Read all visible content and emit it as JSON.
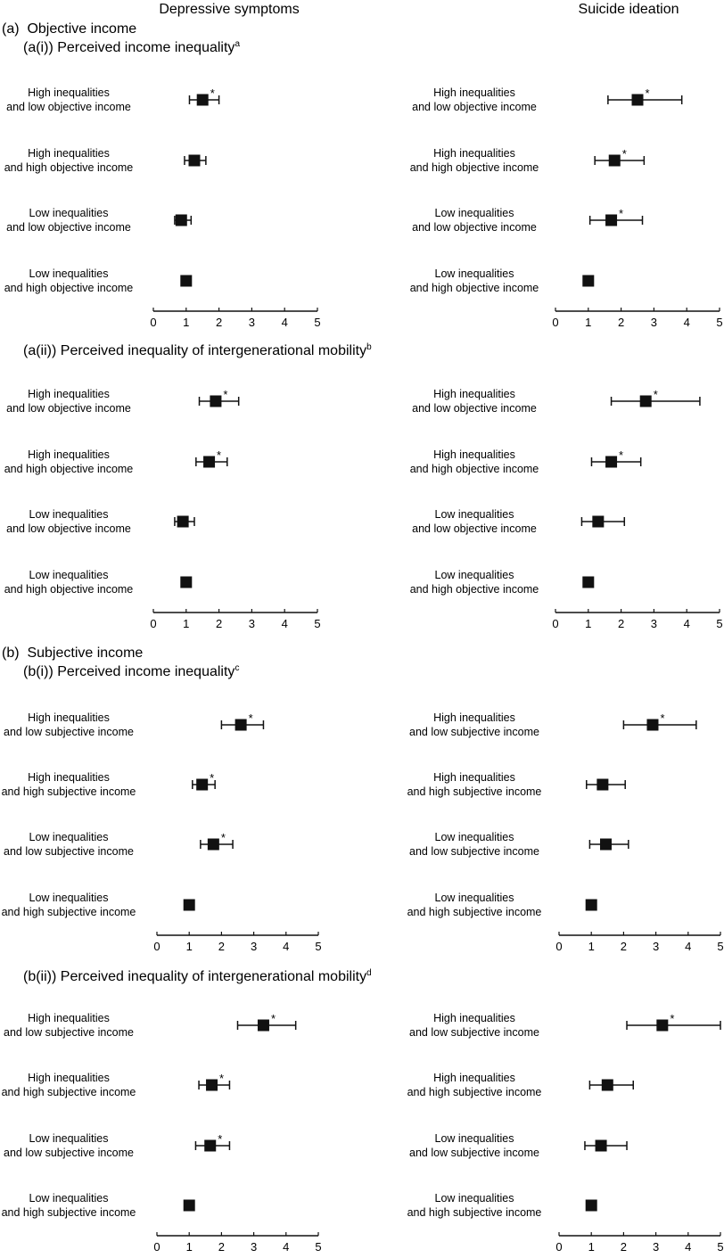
{
  "column_titles": [
    "Depressive symptoms",
    "Suicide ideation"
  ],
  "sections": [
    {
      "label": "(a)  Objective income"
    },
    {
      "label": "(b)  Subjective income"
    }
  ],
  "chart_data": [
    {
      "id": "ai",
      "type": "forest",
      "subtitle": "(a(i)) Perceived income inequality",
      "footnote": "a",
      "categories": [
        [
          "High inequalities",
          "and low objective income"
        ],
        [
          "High inequalities",
          "and high objective income"
        ],
        [
          "Low inequalities",
          "and low objective income"
        ],
        [
          "Low inequalities",
          "and high objective income"
        ]
      ],
      "xlim": [
        0,
        5
      ],
      "xticks": [
        0,
        1,
        2,
        3,
        4,
        5
      ],
      "series": [
        {
          "name": "Depressive symptoms",
          "points": [
            {
              "or": 1.5,
              "lo": 1.1,
              "hi": 2.0,
              "sig": true
            },
            {
              "or": 1.25,
              "lo": 0.95,
              "hi": 1.6,
              "sig": false
            },
            {
              "or": 0.85,
              "lo": 0.65,
              "hi": 1.15,
              "sig": false
            },
            {
              "or": 1.0,
              "lo": null,
              "hi": null,
              "sig": false
            }
          ]
        },
        {
          "name": "Suicide ideation",
          "points": [
            {
              "or": 2.5,
              "lo": 1.6,
              "hi": 3.85,
              "sig": true
            },
            {
              "or": 1.8,
              "lo": 1.2,
              "hi": 2.7,
              "sig": true
            },
            {
              "or": 1.7,
              "lo": 1.05,
              "hi": 2.65,
              "sig": true
            },
            {
              "or": 1.0,
              "lo": null,
              "hi": null,
              "sig": false
            }
          ]
        }
      ]
    },
    {
      "id": "aii",
      "type": "forest",
      "subtitle": "(a(ii)) Perceived inequality of intergenerational mobility",
      "footnote": "b",
      "categories": [
        [
          "High inequalities",
          "and low objective income"
        ],
        [
          "High inequalities",
          "and high objective income"
        ],
        [
          "Low inequalities",
          "and low objective income"
        ],
        [
          "Low inequalities",
          "and high objective income"
        ]
      ],
      "xlim": [
        0,
        5
      ],
      "xticks": [
        0,
        1,
        2,
        3,
        4,
        5
      ],
      "series": [
        {
          "name": "Depressive symptoms",
          "points": [
            {
              "or": 1.9,
              "lo": 1.4,
              "hi": 2.6,
              "sig": true
            },
            {
              "or": 1.7,
              "lo": 1.3,
              "hi": 2.25,
              "sig": true
            },
            {
              "or": 0.9,
              "lo": 0.65,
              "hi": 1.25,
              "sig": false
            },
            {
              "or": 1.0,
              "lo": null,
              "hi": null,
              "sig": false
            }
          ]
        },
        {
          "name": "Suicide ideation",
          "points": [
            {
              "or": 2.75,
              "lo": 1.7,
              "hi": 4.4,
              "sig": true
            },
            {
              "or": 1.7,
              "lo": 1.1,
              "hi": 2.6,
              "sig": true
            },
            {
              "or": 1.3,
              "lo": 0.8,
              "hi": 2.1,
              "sig": false
            },
            {
              "or": 1.0,
              "lo": null,
              "hi": null,
              "sig": false
            }
          ]
        }
      ]
    },
    {
      "id": "bi",
      "type": "forest",
      "subtitle": "(b(i)) Perceived income inequality",
      "footnote": "c",
      "categories": [
        [
          "High inequalities",
          "and low subjective income"
        ],
        [
          "High inequalities",
          "and high subjective income"
        ],
        [
          "Low inequalities",
          "and low subjective income"
        ],
        [
          "Low inequalities",
          "and high subjective income"
        ]
      ],
      "xlim": [
        0,
        5
      ],
      "xticks": [
        0,
        1,
        2,
        3,
        4,
        5
      ],
      "series": [
        {
          "name": "Depressive symptoms",
          "points": [
            {
              "or": 2.6,
              "lo": 2.0,
              "hi": 3.3,
              "sig": true
            },
            {
              "or": 1.4,
              "lo": 1.1,
              "hi": 1.8,
              "sig": true
            },
            {
              "or": 1.75,
              "lo": 1.35,
              "hi": 2.35,
              "sig": true
            },
            {
              "or": 1.0,
              "lo": null,
              "hi": null,
              "sig": false
            }
          ]
        },
        {
          "name": "Suicide ideation",
          "points": [
            {
              "or": 2.9,
              "lo": 2.0,
              "hi": 4.25,
              "sig": true
            },
            {
              "or": 1.35,
              "lo": 0.85,
              "hi": 2.05,
              "sig": false
            },
            {
              "or": 1.45,
              "lo": 0.95,
              "hi": 2.15,
              "sig": false
            },
            {
              "or": 1.0,
              "lo": null,
              "hi": null,
              "sig": false
            }
          ]
        }
      ]
    },
    {
      "id": "bii",
      "type": "forest",
      "subtitle": "(b(ii)) Perceived inequality of intergenerational mobility",
      "footnote": "d",
      "categories": [
        [
          "High inequalities",
          "and low subjective income"
        ],
        [
          "High inequalities",
          "and high subjective income"
        ],
        [
          "Low inequalities",
          "and low subjective income"
        ],
        [
          "Low inequalities",
          "and high subjective income"
        ]
      ],
      "xlim": [
        0,
        5
      ],
      "xticks": [
        0,
        1,
        2,
        3,
        4,
        5
      ],
      "series": [
        {
          "name": "Depressive symptoms",
          "points": [
            {
              "or": 3.3,
              "lo": 2.5,
              "hi": 4.3,
              "sig": true
            },
            {
              "or": 1.7,
              "lo": 1.3,
              "hi": 2.25,
              "sig": true
            },
            {
              "or": 1.65,
              "lo": 1.2,
              "hi": 2.25,
              "sig": true
            },
            {
              "or": 1.0,
              "lo": null,
              "hi": null,
              "sig": false
            }
          ]
        },
        {
          "name": "Suicide ideation",
          "points": [
            {
              "or": 3.2,
              "lo": 2.1,
              "hi": 5.0,
              "sig": true
            },
            {
              "or": 1.5,
              "lo": 0.95,
              "hi": 2.3,
              "sig": false
            },
            {
              "or": 1.3,
              "lo": 0.8,
              "hi": 2.1,
              "sig": false
            },
            {
              "or": 1.0,
              "lo": null,
              "hi": null,
              "sig": false
            }
          ]
        }
      ]
    }
  ],
  "significance_marker": "*"
}
